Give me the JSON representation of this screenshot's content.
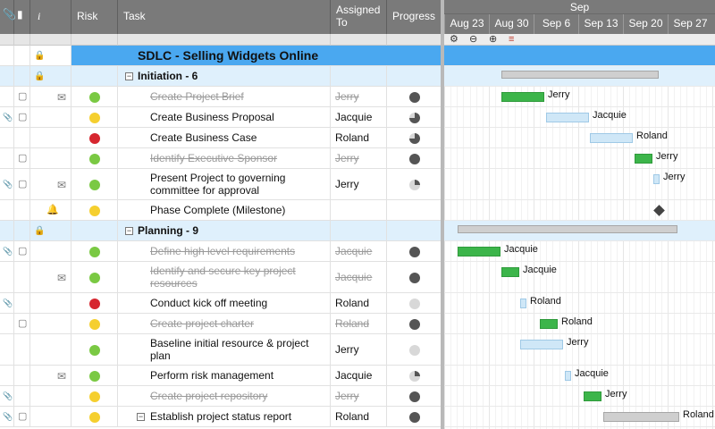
{
  "columns": {
    "attach": "attach-icon",
    "comment": "comment-icon",
    "info": "i",
    "risk": "Risk",
    "task": "Task",
    "assigned": "Assigned To",
    "progress": "Progress"
  },
  "gantt": {
    "month": "Sep",
    "weeks": [
      "Aug 23",
      "Aug 30",
      "Sep 6",
      "Sep 13",
      "Sep 20",
      "Sep 27"
    ],
    "tools": [
      "settings-icon",
      "zoom-out-icon",
      "zoom-in-icon",
      "critical-path-icon"
    ]
  },
  "rows": [
    {
      "task": "SDLC - Selling Widgets Online",
      "type": "project"
    },
    {
      "task": "Initiation - 6",
      "type": "section"
    },
    {
      "task": "Create Project Brief",
      "assigned": "Jerry",
      "risk": "green",
      "progress": 1.0,
      "done": true,
      "bar_label": "Jerry"
    },
    {
      "task": "Create Business Proposal",
      "assigned": "Jacquie",
      "risk": "yellow",
      "progress": 0.75,
      "done": false,
      "bar_label": "Jacquie"
    },
    {
      "task": "Create Business Case",
      "assigned": "Roland",
      "risk": "red",
      "progress": 0.75,
      "done": false,
      "bar_label": "Roland"
    },
    {
      "task": "Identify Executive Sponsor",
      "assigned": "Jerry",
      "risk": "green",
      "progress": 1.0,
      "done": true,
      "bar_label": "Jerry"
    },
    {
      "task": "Present Project to governing committee for approval",
      "assigned": "Jerry",
      "risk": "green",
      "progress": 0.25,
      "done": false,
      "bar_label": "Jerry"
    },
    {
      "task": "Phase Complete (Milestone)",
      "assigned": "",
      "risk": "yellow",
      "progress": null,
      "done": false
    },
    {
      "task": "Planning - 9",
      "type": "section"
    },
    {
      "task": "Define high level requirements",
      "assigned": "Jacquie",
      "risk": "green",
      "progress": 1.0,
      "done": true,
      "bar_label": "Jacquie"
    },
    {
      "task": "Identify and secure key project resources",
      "assigned": "Jacquie",
      "risk": "green",
      "progress": 1.0,
      "done": true,
      "bar_label": "Jacquie"
    },
    {
      "task": "Conduct kick off meeting",
      "assigned": "Roland",
      "risk": "red",
      "progress": 0.0,
      "done": false,
      "bar_label": "Roland"
    },
    {
      "task": "Create project charter",
      "assigned": "Roland",
      "risk": "yellow",
      "progress": 1.0,
      "done": true,
      "bar_label": "Roland"
    },
    {
      "task": "Baseline initial resource & project plan",
      "assigned": "Jerry",
      "risk": "green",
      "progress": 0.0,
      "done": false,
      "bar_label": "Jerry"
    },
    {
      "task": "Perform risk management",
      "assigned": "Jacquie",
      "risk": "green",
      "progress": 0.25,
      "done": false,
      "bar_label": "Jacquie"
    },
    {
      "task": "Create project repository",
      "assigned": "Jerry",
      "risk": "yellow",
      "progress": 1.0,
      "done": true,
      "bar_label": "Jerry"
    },
    {
      "task": "Establish project status report",
      "assigned": "Roland",
      "risk": "yellow",
      "progress": 1.0,
      "done": false,
      "bar_label": "Roland"
    }
  ],
  "colors": {
    "header": "#7a7a7a",
    "project_bar": "#4aa8f0",
    "section": "#dff0fc",
    "done_bar": "#3cb54a",
    "todo_bar": "#cfe7f7"
  }
}
